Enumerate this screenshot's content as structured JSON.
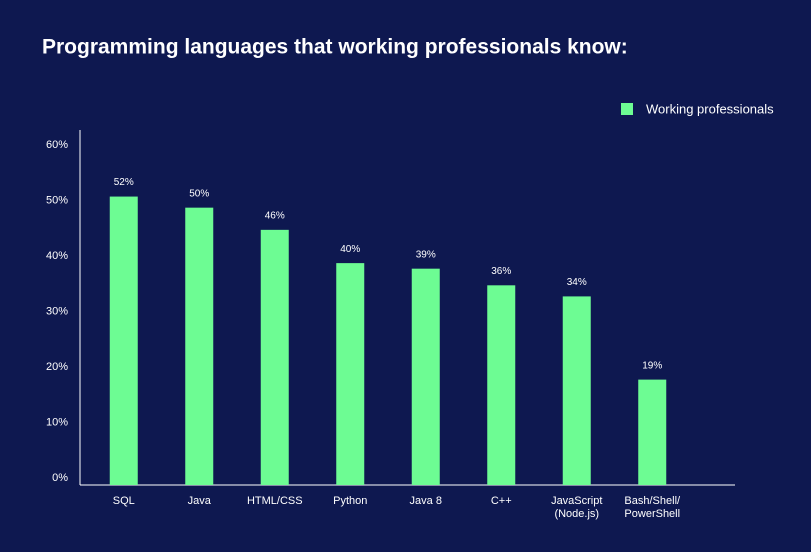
{
  "chart_data": {
    "type": "bar",
    "title": "Programming languages that working professionals know:",
    "categories": [
      "SQL",
      "Java",
      "HTML/CSS",
      "Python",
      "Java 8",
      "C++",
      "JavaScript\n(Node.js)",
      "Bash/Shell/\nPowerShell"
    ],
    "series": [
      {
        "name": "Working professionals",
        "color": "#6dfc93",
        "values": [
          52,
          50,
          46,
          40,
          39,
          36,
          34,
          19
        ],
        "value_labels": [
          "52%",
          "50%",
          "46%",
          "40%",
          "39%",
          "36%",
          "34%",
          "19%"
        ]
      }
    ],
    "ylim": [
      0,
      64
    ],
    "yticks": [
      {
        "value": 0,
        "label": "0%"
      },
      {
        "value": 10,
        "label": "10%"
      },
      {
        "value": 20,
        "label": "20%"
      },
      {
        "value": 30,
        "label": "30%"
      },
      {
        "value": 40,
        "label": "40%"
      },
      {
        "value": 50,
        "label": "50%"
      },
      {
        "value": 60,
        "label": "60%"
      }
    ],
    "grid": false,
    "legend": "top-right"
  }
}
